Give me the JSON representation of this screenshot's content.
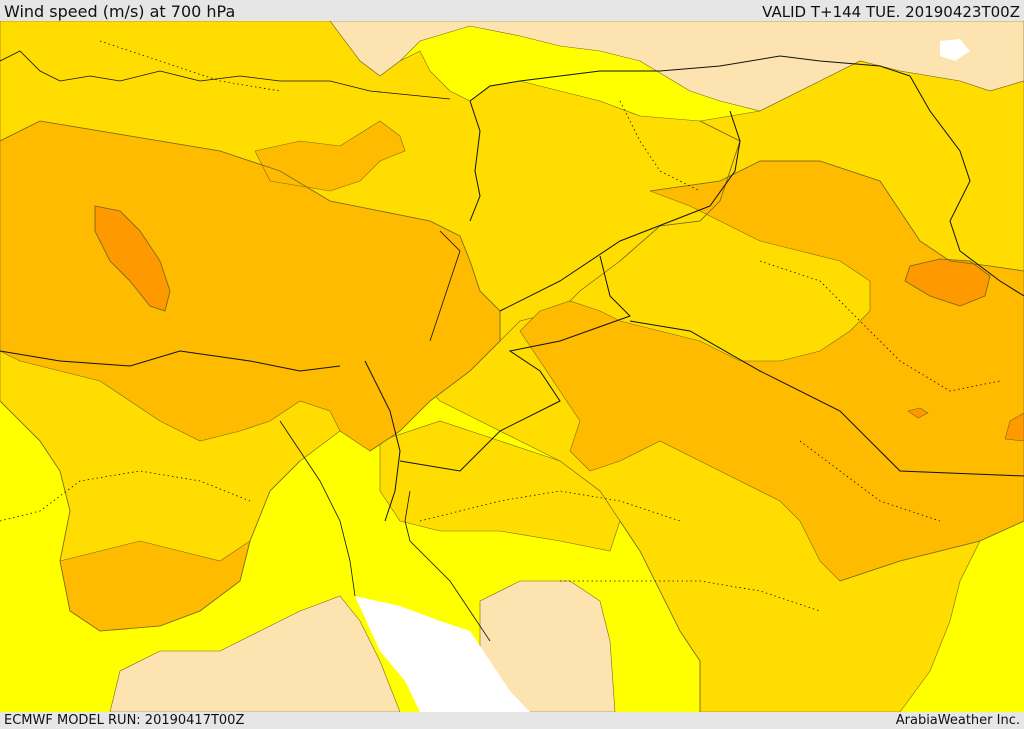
{
  "header": {
    "title": "Wind speed (m/s) at 700 hPa",
    "valid": "VALID T+144 TUE. 20190423T00Z"
  },
  "footer": {
    "model_run": "ECMWF MODEL RUN: 20190417T00Z",
    "credit": "ArabiaWeather Inc."
  },
  "colors": {
    "sea_none": "#ffffff",
    "calm": "#fde3b0",
    "band_1": "#ffff00",
    "band_2": "#ffdd00",
    "band_3": "#ffbb00",
    "band_4": "#ff9900",
    "contour_line": "#7a6a20",
    "border_line": "#111111"
  }
}
